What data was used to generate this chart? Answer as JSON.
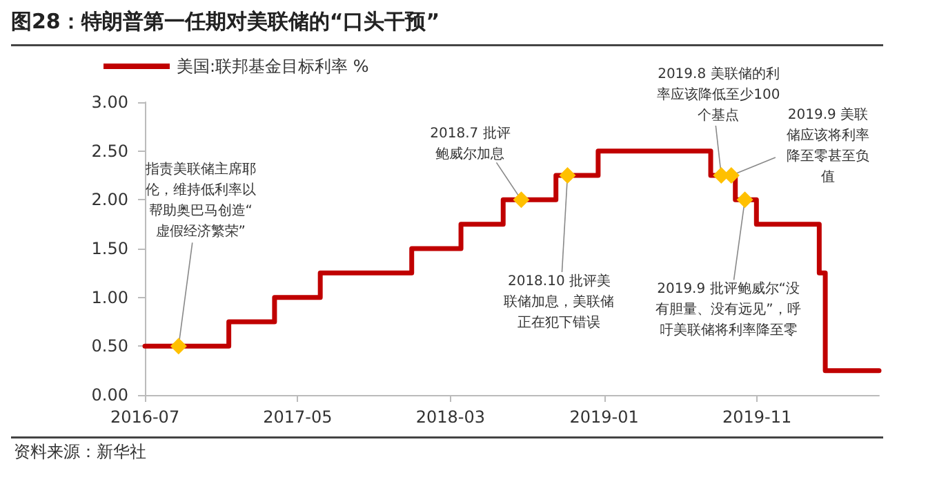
{
  "chart_data": {
    "type": "step",
    "title": "图28：特朗普第一任期对美联储的“口头干预”",
    "x": [
      "2016-07-01",
      "2016-12-15",
      "2017-03-16",
      "2017-06-15",
      "2017-12-14",
      "2018-03-22",
      "2018-06-14",
      "2018-09-27",
      "2018-12-20",
      "2019-08-01",
      "2019-09-19",
      "2019-10-31",
      "2020-03-04",
      "2020-03-16",
      "2020-07-01"
    ],
    "series": [
      {
        "name": "美国:联邦基金目标利率 %",
        "color": "#c00000",
        "values": [
          0.5,
          0.75,
          1.0,
          1.25,
          1.5,
          1.75,
          2.0,
          2.25,
          2.5,
          2.25,
          2.0,
          1.75,
          1.25,
          0.25,
          0.25
        ]
      }
    ],
    "xlim": [
      "2016-07-01",
      "2020-07-01"
    ],
    "xticks": [
      "2016-07",
      "2017-05",
      "2018-03",
      "2019-01",
      "2019-11"
    ],
    "ylim": [
      0,
      3
    ],
    "yticks": [
      {
        "value": 0,
        "label": "0.00"
      },
      {
        "value": 0.5,
        "label": "0.50"
      },
      {
        "value": 1,
        "label": "1.00"
      },
      {
        "value": 1.5,
        "label": "1.50"
      },
      {
        "value": 2,
        "label": "2.00"
      },
      {
        "value": 2.5,
        "label": "2.50"
      },
      {
        "value": 3,
        "label": "3.00"
      }
    ],
    "grid": false,
    "legend": "top left",
    "marker": "none",
    "line_style": "solid",
    "annotations": [
      {
        "text": "指责美联储主席耶伦，维持低利率以帮助奥巴马创造“虚假经济繁荣”",
        "x": "2016-09-06",
        "y": 0.5
      },
      {
        "text": "2018.7 批评鲍威尔加息",
        "x": "2018-07-20",
        "y": 2.0
      },
      {
        "text": "2018.10 批评美联储加息，美联储正在犯下错误",
        "x": "2018-10-20",
        "y": 2.25
      },
      {
        "text": "2019.8 美联储的利率应该降低至少100个基点",
        "x": "2019-08-22",
        "y": 2.25
      },
      {
        "text": "2019.9 美联储应该将利率降至零甚至负值",
        "x": "2019-09-11",
        "y": 2.25
      },
      {
        "text": "2019.9 批评鲍威尔“没有胆量、没有远见”，呼吁美联储将利率降至零",
        "x": "2019-10-08",
        "y": 2.0
      },
      "资料来源：新华社"
    ]
  }
}
